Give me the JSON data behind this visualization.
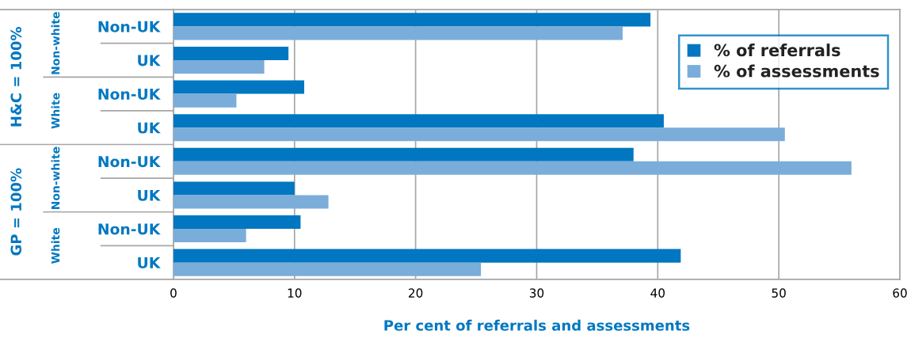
{
  "chart_data": {
    "type": "bar",
    "orientation": "horizontal",
    "categories": [
      "Non-UK",
      "UK",
      "Non-UK",
      "UK",
      "Non-UK",
      "UK",
      "Non-UK",
      "UK"
    ],
    "series": [
      {
        "name": "% of referrals",
        "color": "#0077c0",
        "values": [
          39.4,
          9.5,
          10.8,
          40.5,
          38.0,
          10.0,
          10.5,
          41.9
        ]
      },
      {
        "name": "% of assessments",
        "color": "#7aadd9",
        "values": [
          37.1,
          7.5,
          5.2,
          50.5,
          56.0,
          12.8,
          6.0,
          25.4
        ]
      }
    ],
    "xlim": [
      0,
      60
    ],
    "xticks": [
      0,
      10,
      20,
      30,
      40,
      50,
      60
    ],
    "xlabel": "Per cent of referrals and assessments",
    "annotations": [
      "Non-white",
      "White",
      "Non-white",
      "White",
      "H&C = 100%",
      "GP = 100%"
    ],
    "grid": "x",
    "legend": "top right"
  }
}
